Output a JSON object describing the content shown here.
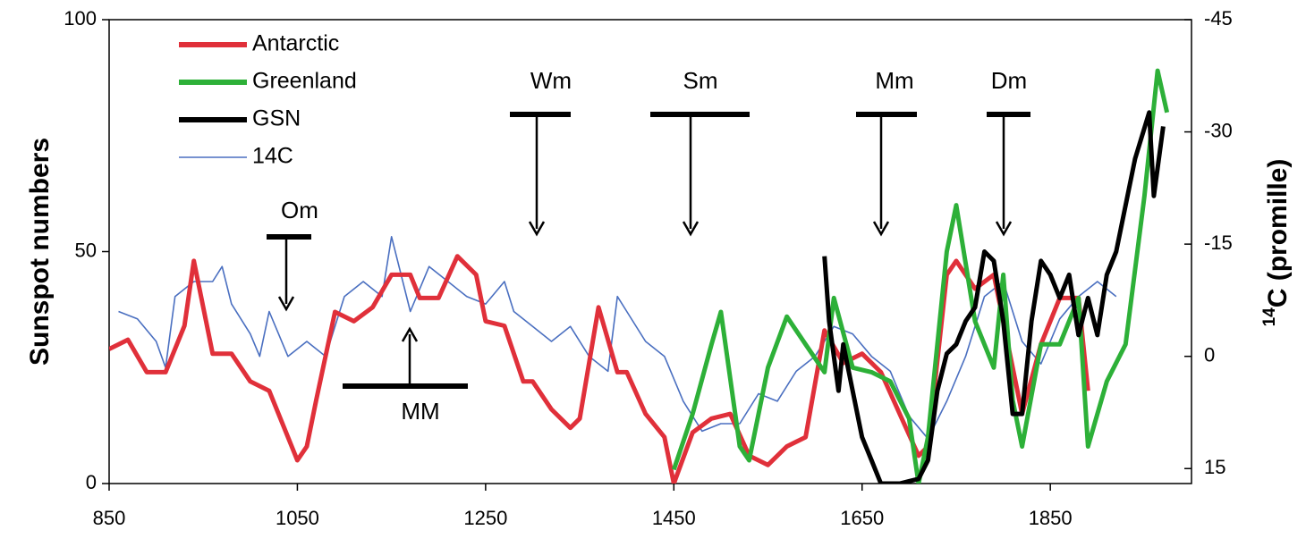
{
  "chart_data": {
    "type": "line",
    "xlim": [
      850,
      2000
    ],
    "xticks": [
      850,
      1050,
      1250,
      1450,
      1650,
      1850
    ],
    "ylim": [
      0,
      100
    ],
    "yticks": [
      0,
      50,
      100
    ],
    "y2lim": [
      17,
      -45
    ],
    "y2ticks": [
      15,
      0,
      -15,
      -30,
      -45
    ],
    "ylabel": "Sunspot numbers",
    "y2label_sup": "14",
    "y2label": "C (promille)",
    "legend": "top-left",
    "series": [
      {
        "name": "Antarctic",
        "color": "#e0303a",
        "x": [
          850,
          870,
          890,
          910,
          930,
          940,
          960,
          980,
          1000,
          1020,
          1040,
          1050,
          1060,
          1070,
          1090,
          1110,
          1130,
          1150,
          1170,
          1180,
          1200,
          1220,
          1240,
          1250,
          1270,
          1290,
          1300,
          1320,
          1340,
          1350,
          1370,
          1390,
          1400,
          1420,
          1440,
          1450,
          1470,
          1490,
          1510,
          1530,
          1550,
          1570,
          1590,
          1610,
          1630,
          1650,
          1670,
          1690,
          1710,
          1720,
          1740,
          1750,
          1770,
          1790,
          1810,
          1820,
          1840,
          1860,
          1880,
          1890
        ],
        "values": [
          29,
          31,
          24,
          24,
          34,
          48,
          28,
          28,
          22,
          20,
          10,
          5,
          8,
          18,
          37,
          35,
          38,
          45,
          45,
          40,
          40,
          49,
          45,
          35,
          34,
          22,
          22,
          16,
          12,
          14,
          38,
          24,
          24,
          15,
          10,
          0,
          11,
          14,
          15,
          6,
          4,
          8,
          10,
          33,
          26,
          28,
          24,
          15,
          6,
          8,
          45,
          48,
          42,
          45,
          25,
          15,
          30,
          40,
          40,
          20
        ]
      },
      {
        "name": "Greenland",
        "color": "#2db038",
        "x": [
          1450,
          1470,
          1490,
          1500,
          1520,
          1530,
          1550,
          1570,
          1590,
          1610,
          1620,
          1640,
          1660,
          1680,
          1700,
          1710,
          1720,
          1740,
          1750,
          1770,
          1790,
          1800,
          1810,
          1820,
          1840,
          1860,
          1880,
          1890,
          1910,
          1930,
          1950,
          1964,
          1974
        ],
        "values": [
          3,
          15,
          30,
          37,
          8,
          5,
          25,
          36,
          30,
          24,
          40,
          25,
          24,
          22,
          14,
          0,
          10,
          50,
          60,
          35,
          25,
          45,
          18,
          8,
          30,
          30,
          40,
          8,
          22,
          30,
          62,
          89,
          80
        ]
      },
      {
        "name": "GSN",
        "color": "#000000",
        "x": [
          1610,
          1615,
          1625,
          1630,
          1640,
          1650,
          1660,
          1670,
          1690,
          1710,
          1720,
          1730,
          1740,
          1750,
          1760,
          1770,
          1780,
          1790,
          1800,
          1810,
          1820,
          1830,
          1840,
          1850,
          1860,
          1870,
          1880,
          1890,
          1900,
          1910,
          1920,
          1940,
          1955,
          1960,
          1970
        ],
        "values": [
          49,
          35,
          20,
          30,
          20,
          10,
          5,
          0,
          0,
          1,
          5,
          20,
          28,
          30,
          35,
          38,
          50,
          48,
          35,
          15,
          15,
          35,
          48,
          45,
          40,
          45,
          32,
          40,
          32,
          45,
          50,
          70,
          80,
          62,
          77
        ]
      },
      {
        "name": "14C",
        "color": "#4a6fc0",
        "axis": "y2",
        "x": [
          860,
          880,
          900,
          910,
          920,
          940,
          960,
          970,
          980,
          1000,
          1010,
          1020,
          1030,
          1040,
          1060,
          1080,
          1100,
          1120,
          1140,
          1150,
          1170,
          1190,
          1210,
          1230,
          1250,
          1270,
          1280,
          1300,
          1320,
          1340,
          1360,
          1380,
          1390,
          1400,
          1420,
          1440,
          1460,
          1480,
          1500,
          1520,
          1540,
          1560,
          1580,
          1600,
          1620,
          1640,
          1660,
          1680,
          1700,
          1720,
          1740,
          1760,
          1780,
          1800,
          1820,
          1840,
          1860,
          1880,
          1900,
          1920
        ],
        "values": [
          -6,
          -5,
          -2,
          1.5,
          -8,
          -10,
          -10,
          -12,
          -7,
          -3,
          0,
          -6,
          -3,
          0,
          -2,
          0,
          -8,
          -10,
          -8,
          -16,
          -6,
          -12,
          -10,
          -8,
          -7,
          -10,
          -6,
          -4,
          -2,
          -4,
          0,
          2,
          -8,
          -6,
          -2,
          0,
          6,
          10,
          9,
          9,
          5,
          6,
          2,
          0,
          -4,
          -3,
          0,
          2,
          8,
          11,
          6,
          0,
          -8,
          -10,
          -2,
          1,
          -5,
          -8,
          -10,
          -8
        ]
      }
    ],
    "annotations": [
      "Om",
      "MM",
      "Wm",
      "Sm",
      "Mm",
      "Dm"
    ]
  }
}
